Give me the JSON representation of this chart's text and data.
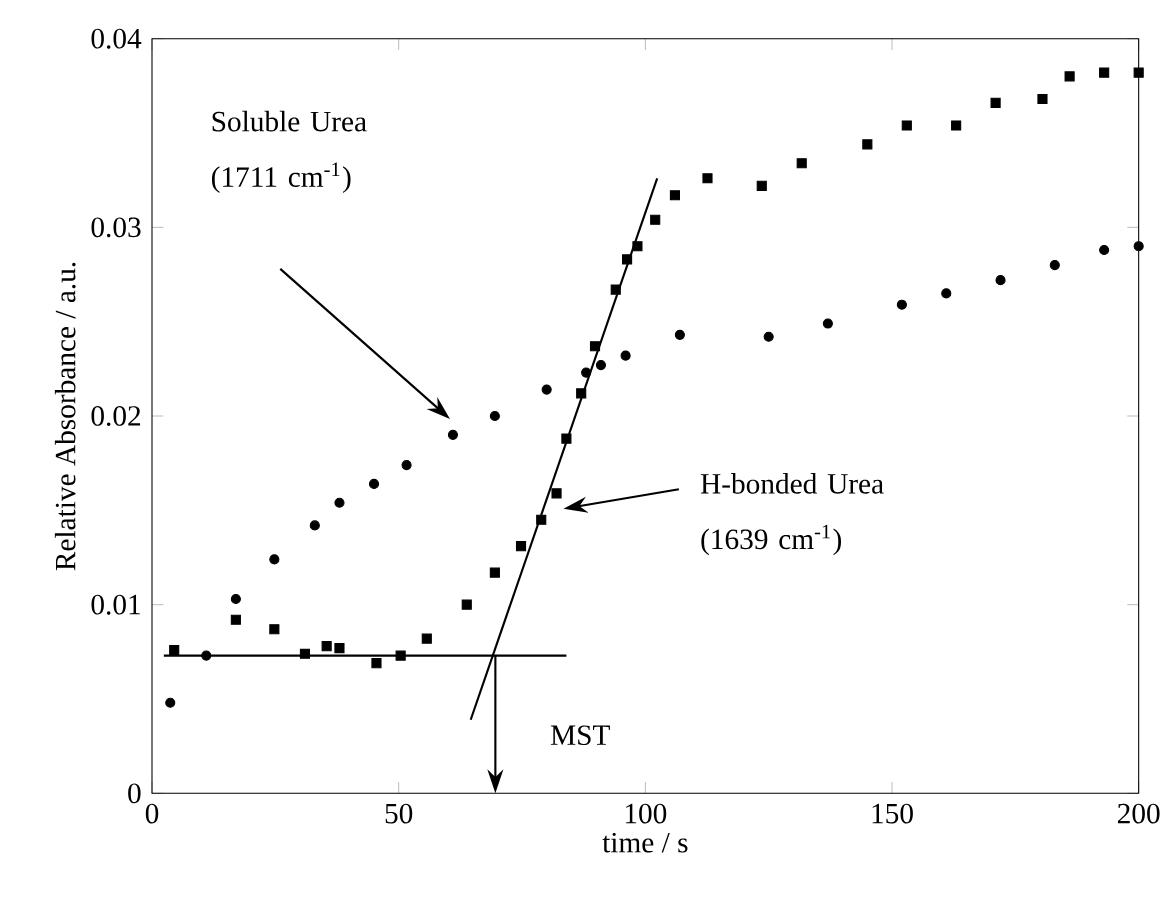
{
  "chart_data": {
    "type": "scatter",
    "xlabel": "time / s",
    "ylabel": "Relative Absorbance / a.u.",
    "xlim": [
      0,
      200
    ],
    "ylim": [
      0,
      0.04
    ],
    "xticks": [
      0,
      50,
      100,
      150,
      200
    ],
    "yticks": [
      0,
      0.01,
      0.02,
      0.03,
      0.04
    ],
    "grid": false,
    "series": [
      {
        "type": "scatter",
        "marker": "circle",
        "color": "#000000",
        "x": [
          3.7,
          11,
          17,
          24.8,
          33,
          38,
          45,
          51.6,
          61,
          69.5,
          80,
          88,
          91,
          96,
          107,
          125,
          137,
          152,
          161,
          172,
          183,
          193,
          200
        ],
        "values": [
          0.0048,
          0.0073,
          0.0103,
          0.0124,
          0.0142,
          0.0154,
          0.0164,
          0.0174,
          0.019,
          0.02,
          0.0214,
          0.0223,
          0.0227,
          0.0232,
          0.0243,
          0.0242,
          0.0249,
          0.0259,
          0.0265,
          0.0272,
          0.028,
          0.0288,
          0.029
        ]
      },
      {
        "type": "scatter",
        "marker": "square",
        "color": "#000000",
        "x": [
          4.5,
          17,
          24.8,
          31,
          35.4,
          38,
          45.5,
          50.4,
          55.7,
          63.8,
          69.5,
          74.8,
          78.9,
          82,
          84,
          87,
          89.8,
          94,
          96.3,
          98.4,
          102,
          106,
          112.6,
          123.6,
          131.7,
          145,
          153,
          163,
          171,
          180.5,
          186,
          193,
          200
        ],
        "values": [
          0.0076,
          0.0092,
          0.0087,
          0.0074,
          0.0078,
          0.0077,
          0.0069,
          0.0073,
          0.0082,
          0.01,
          0.0117,
          0.0131,
          0.0145,
          0.0159,
          0.0188,
          0.0212,
          0.0237,
          0.0267,
          0.0283,
          0.029,
          0.0304,
          0.0317,
          0.0326,
          0.0322,
          0.0334,
          0.0344,
          0.0354,
          0.0354,
          0.0366,
          0.0368,
          0.038,
          0.0382,
          0.0382
        ]
      },
      {
        "type": "line",
        "marker": "none",
        "line_style": "solid",
        "color": "#000000",
        "x": [
          2.4,
          84
        ],
        "values": [
          0.0073,
          0.0073
        ]
      },
      {
        "type": "line",
        "marker": "none",
        "line_style": "solid",
        "color": "#000000",
        "x": [
          64.6,
          102.4
        ],
        "values": [
          0.0039,
          0.0326
        ]
      }
    ],
    "annotations": [
      "Soluble Urea (1711 cm$^{-1}$)",
      "H-bonded Urea (1639 cm$^{-1}$)",
      "MST"
    ]
  }
}
